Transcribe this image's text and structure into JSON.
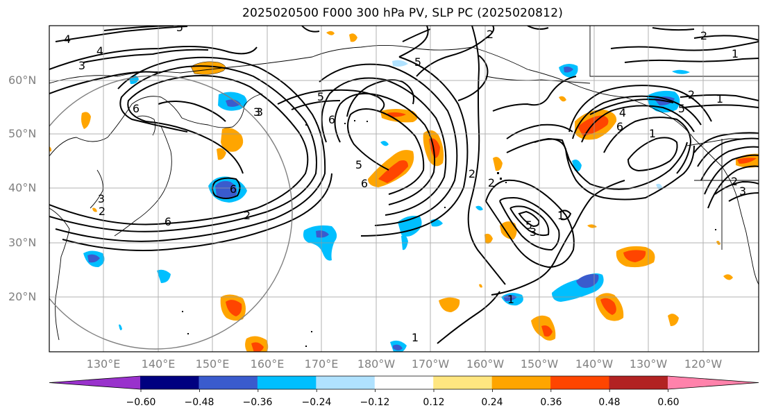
{
  "title": "2025020500 F000 300 hPa PV, SLP PC (2025020812)",
  "lat_labels": [
    "60°N",
    "50°N",
    "40°N",
    "30°N",
    "20°N"
  ],
  "lon_labels": [
    "130°E",
    "140°E",
    "150°E",
    "160°E",
    "170°E",
    "180°W",
    "170°W",
    "160°W",
    "150°W",
    "140°W",
    "130°W",
    "120°W"
  ],
  "colorbar": {
    "colors": [
      "#9932cc",
      "#000080",
      "#3a5bcd",
      "#00bfff",
      "#b0e2ff",
      "#ffffff",
      "#ffe680",
      "#ffa500",
      "#ff4500",
      "#b22222",
      "#ff82ab"
    ],
    "ticks": [
      "−0.60",
      "−0.48",
      "−0.36",
      "−0.24",
      "−0.12",
      "0.12",
      "0.24",
      "0.36",
      "0.48",
      "0.60"
    ]
  },
  "contour_labels": [
    "4",
    "4",
    "3",
    "5",
    "3",
    "5",
    "6",
    "5",
    "6",
    "6",
    "6",
    "2",
    "2",
    "5",
    "3",
    "2",
    "1",
    "2",
    "1",
    "1",
    "2",
    "5",
    "3",
    "2",
    "6",
    "4",
    "5",
    "1",
    "2",
    "3",
    "1",
    "1",
    "3",
    "2",
    "6"
  ]
}
